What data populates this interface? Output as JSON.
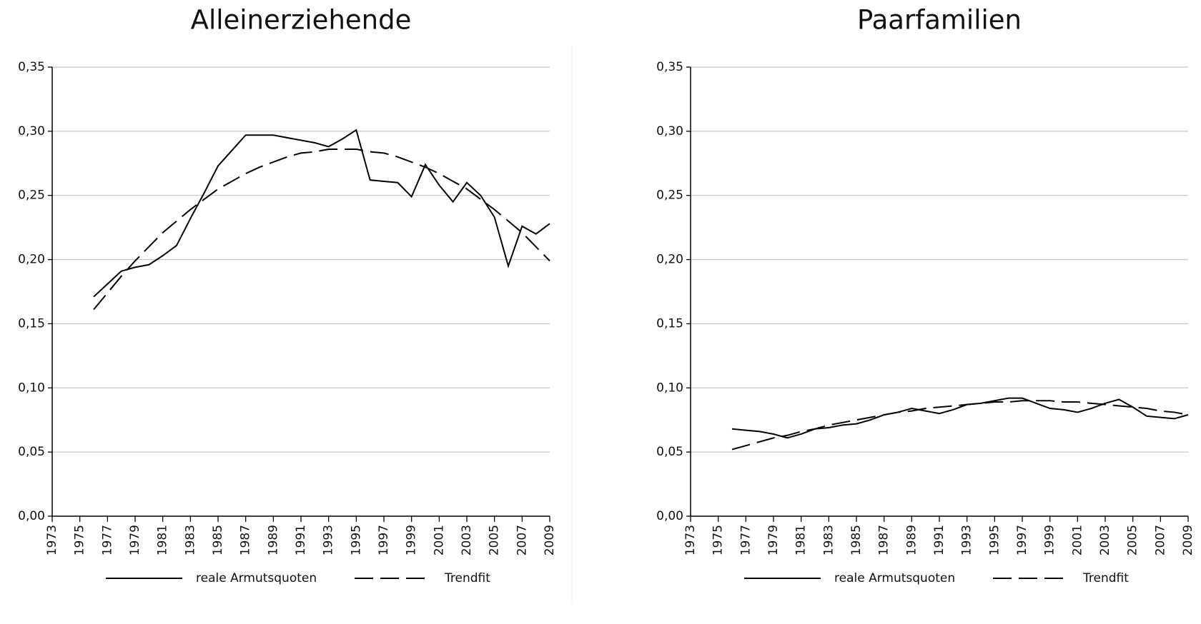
{
  "chart_data": [
    {
      "type": "line",
      "title": "Alleinerziehende",
      "x": [
        1976,
        1977,
        1978,
        1979,
        1980,
        1981,
        1982,
        1983,
        1984,
        1985,
        1986,
        1987,
        1988,
        1989,
        1990,
        1991,
        1992,
        1993,
        1994,
        1995,
        1996,
        1997,
        1998,
        1999,
        2000,
        2001,
        2002,
        2003,
        2004,
        2005,
        2006,
        2007,
        2008,
        2009
      ],
      "series": [
        {
          "name": "reale Armutsquoten",
          "color": "#000000",
          "style": "solid",
          "values": [
            0.171,
            0.181,
            0.191,
            0.194,
            0.196,
            0.203,
            0.211,
            0.232,
            0.252,
            0.273,
            0.285,
            0.297,
            0.297,
            0.297,
            0.295,
            0.293,
            0.291,
            0.288,
            0.294,
            0.301,
            0.262,
            0.261,
            0.26,
            0.249,
            0.274,
            0.258,
            0.245,
            0.26,
            0.25,
            0.233,
            0.195,
            0.226,
            0.22,
            0.228
          ]
        },
        {
          "name": "Trendfit",
          "color": "#000000",
          "style": "dashed",
          "values": [
            0.161,
            0.174,
            0.187,
            0.199,
            0.21,
            0.221,
            0.23,
            0.239,
            0.247,
            0.255,
            0.261,
            0.267,
            0.272,
            0.276,
            0.28,
            0.283,
            0.284,
            0.286,
            0.286,
            0.286,
            0.284,
            0.283,
            0.28,
            0.276,
            0.272,
            0.267,
            0.261,
            0.255,
            0.247,
            0.239,
            0.23,
            0.221,
            0.21,
            0.199
          ]
        }
      ],
      "xlim": [
        1973,
        2009
      ],
      "xticks": [
        1973,
        1975,
        1977,
        1979,
        1981,
        1983,
        1985,
        1987,
        1989,
        1991,
        1993,
        1995,
        1997,
        1999,
        2001,
        2003,
        2005,
        2007,
        2009
      ],
      "ylim": [
        0,
        0.35
      ],
      "yticks": [
        {
          "value": 0,
          "label": "0,00"
        },
        {
          "value": 0.05,
          "label": "0,05"
        },
        {
          "value": 0.1,
          "label": "0,10"
        },
        {
          "value": 0.15,
          "label": "0,15"
        },
        {
          "value": 0.2,
          "label": "0,20"
        },
        {
          "value": 0.25,
          "label": "0,25"
        },
        {
          "value": 0.3,
          "label": "0,30"
        },
        {
          "value": 0.35,
          "label": "0,35"
        }
      ],
      "grid": true,
      "legend": "bottom"
    },
    {
      "type": "line",
      "title": "Paarfamilien",
      "x": [
        1976,
        1977,
        1978,
        1979,
        1980,
        1981,
        1982,
        1983,
        1984,
        1985,
        1986,
        1987,
        1988,
        1989,
        1990,
        1991,
        1992,
        1993,
        1994,
        1995,
        1996,
        1997,
        1998,
        1999,
        2000,
        2001,
        2002,
        2003,
        2004,
        2005,
        2006,
        2007,
        2008,
        2009
      ],
      "series": [
        {
          "name": "reale Armutsquoten",
          "color": "#000000",
          "style": "solid",
          "values": [
            0.068,
            0.067,
            0.066,
            0.064,
            0.061,
            0.064,
            0.068,
            0.069,
            0.071,
            0.072,
            0.075,
            0.079,
            0.081,
            0.084,
            0.082,
            0.08,
            0.083,
            0.087,
            0.088,
            0.09,
            0.092,
            0.092,
            0.088,
            0.084,
            0.083,
            0.081,
            0.084,
            0.088,
            0.091,
            0.085,
            0.078,
            0.077,
            0.076,
            0.079
          ]
        },
        {
          "name": "Trendfit",
          "color": "#000000",
          "style": "dashed",
          "values": [
            0.052,
            0.055,
            0.058,
            0.061,
            0.063,
            0.066,
            0.068,
            0.071,
            0.073,
            0.075,
            0.077,
            0.079,
            0.081,
            0.082,
            0.084,
            0.085,
            0.086,
            0.087,
            0.088,
            0.089,
            0.089,
            0.09,
            0.09,
            0.09,
            0.089,
            0.089,
            0.088,
            0.087,
            0.086,
            0.085,
            0.084,
            0.082,
            0.081,
            0.079
          ]
        }
      ],
      "xlim": [
        1973,
        2009
      ],
      "xticks": [
        1973,
        1975,
        1977,
        1979,
        1981,
        1983,
        1985,
        1987,
        1989,
        1991,
        1993,
        1995,
        1997,
        1999,
        2001,
        2003,
        2005,
        2007,
        2009
      ],
      "ylim": [
        0,
        0.35
      ],
      "yticks": [
        {
          "value": 0,
          "label": "0,00"
        },
        {
          "value": 0.05,
          "label": "0,05"
        },
        {
          "value": 0.1,
          "label": "0,10"
        },
        {
          "value": 0.15,
          "label": "0,15"
        },
        {
          "value": 0.2,
          "label": "0,20"
        },
        {
          "value": 0.25,
          "label": "0,25"
        },
        {
          "value": 0.3,
          "label": "0,30"
        },
        {
          "value": 0.35,
          "label": "0,35"
        }
      ],
      "grid": true,
      "legend": "bottom"
    }
  ]
}
